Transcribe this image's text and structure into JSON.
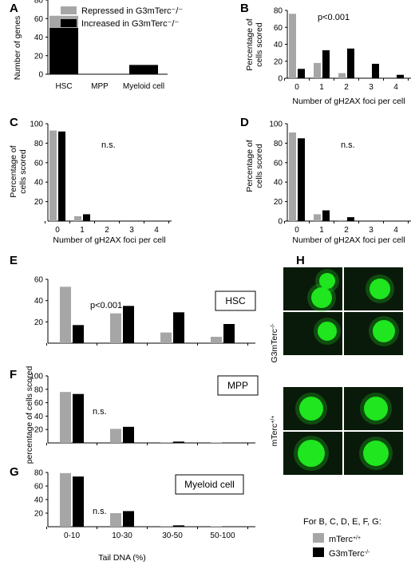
{
  "colors": {
    "gray": "#a6a6a6",
    "black": "#000000",
    "micro_bg": "#0a1a0a",
    "nucleus": "#1fe61f"
  },
  "chart_data": [
    {
      "panel": "A",
      "type": "bar",
      "stacked": true,
      "categories": [
        "HSC",
        "MPP",
        "Myeloid cell"
      ],
      "series": [
        {
          "name": "Increased in G3mTerc-/-",
          "color": "black",
          "values": [
            50,
            0,
            10
          ]
        },
        {
          "name": "Repressed in G3mTerc-/-",
          "color": "gray",
          "values": [
            13,
            0,
            0
          ]
        }
      ],
      "ylabel": "Number of genes",
      "ylim": [
        0,
        80
      ],
      "yticks": [
        "0",
        "20",
        "40",
        "60",
        "80"
      ],
      "legend": [
        "Repressed in G3mTerc⁻/⁻",
        "Increased in G3mTerc⁻/⁻"
      ]
    },
    {
      "panel": "B",
      "type": "bar",
      "categories": [
        "0",
        "1",
        "2",
        "3",
        "4"
      ],
      "series": [
        {
          "color": "gray",
          "values": [
            76,
            18,
            6,
            0,
            0
          ]
        },
        {
          "color": "black",
          "values": [
            11,
            33,
            35,
            17,
            4
          ]
        }
      ],
      "ylabel": [
        "Percentage of",
        "cells scored"
      ],
      "xlabel": "Number of gH2AX foci per cell",
      "ylim": [
        0,
        80
      ],
      "yticks": [
        "0",
        "20",
        "40",
        "60",
        "80"
      ],
      "annotation": "p<0.001"
    },
    {
      "panel": "C",
      "type": "bar",
      "categories": [
        "0",
        "1",
        "2",
        "3",
        "4"
      ],
      "series": [
        {
          "color": "gray",
          "values": [
            93,
            5,
            0,
            0,
            0
          ]
        },
        {
          "color": "black",
          "values": [
            92,
            7,
            0,
            0,
            0
          ]
        }
      ],
      "ylabel": [
        "Percentage of",
        "cells scored"
      ],
      "xlabel": "Number of gH2AX foci per cell",
      "ylim": [
        0,
        100
      ],
      "yticks": [
        "20",
        "40",
        "60",
        "80",
        "100"
      ],
      "annotation": "n.s."
    },
    {
      "panel": "D",
      "type": "bar",
      "categories": [
        "0",
        "1",
        "2",
        "3",
        "4"
      ],
      "series": [
        {
          "color": "gray",
          "values": [
            91,
            7,
            1,
            0,
            0
          ]
        },
        {
          "color": "black",
          "values": [
            85,
            11,
            4,
            0,
            0
          ]
        }
      ],
      "ylabel": [
        "Percentage of",
        "cells scored"
      ],
      "xlabel": "Number of gH2AX foci per cell",
      "ylim": [
        0,
        100
      ],
      "yticks": [
        "0",
        "20",
        "40",
        "60",
        "80",
        "100"
      ],
      "annotation": "n.s."
    },
    {
      "panel": "E",
      "type": "bar",
      "boxlabel": "HSC",
      "categories": [
        "0-10",
        "10-30",
        "30-50",
        "50-100"
      ],
      "series": [
        {
          "color": "gray",
          "values": [
            53,
            28,
            10,
            6
          ]
        },
        {
          "color": "black",
          "values": [
            17,
            35,
            29,
            18
          ]
        }
      ],
      "ylim": [
        0,
        60
      ],
      "yticks": [
        "20",
        "40",
        "60"
      ],
      "annotation": "p<0.001"
    },
    {
      "panel": "F",
      "type": "bar",
      "boxlabel": "MPP",
      "categories": [
        "0-10",
        "10-30",
        "30-50",
        "50-100"
      ],
      "series": [
        {
          "color": "gray",
          "values": [
            76,
            21,
            1,
            0.5
          ]
        },
        {
          "color": "black",
          "values": [
            73,
            24,
            2,
            0.5
          ]
        }
      ],
      "ylabel": "percentage of cells scored",
      "ylim": [
        0,
        100
      ],
      "yticks": [
        "20",
        "40",
        "60",
        "80",
        "100"
      ],
      "annotation": "n.s."
    },
    {
      "panel": "G",
      "type": "bar",
      "boxlabel": "Myeloid cell",
      "categories": [
        "0-10",
        "10-30",
        "30-50",
        "50-100"
      ],
      "series": [
        {
          "color": "gray",
          "values": [
            79,
            20,
            1,
            0.5
          ]
        },
        {
          "color": "black",
          "values": [
            74,
            23,
            2,
            0.5
          ]
        }
      ],
      "xlabel": "Tail DNA (%)",
      "ylim": [
        0,
        80
      ],
      "yticks": [
        "20",
        "40",
        "60",
        "80"
      ],
      "annotation": "n.s."
    }
  ],
  "panel_h": {
    "letter": "H",
    "rows": [
      "G3mTerc-/-",
      "mTerc+/+"
    ]
  },
  "bottom_legend": {
    "title": "For B, C, D, E, F, G:",
    "items": [
      {
        "label": "mTerc+/+",
        "color": "gray"
      },
      {
        "label": "G3mTerc-/-",
        "color": "black"
      }
    ]
  }
}
